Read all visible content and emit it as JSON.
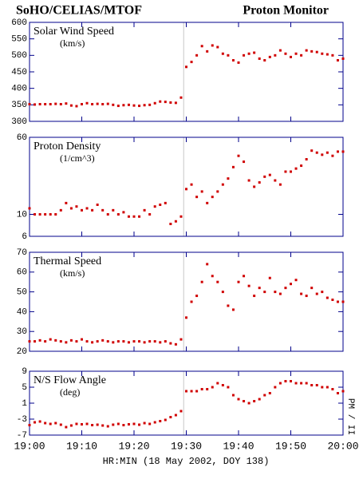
{
  "header": {
    "left": "SoHO/CELIAS/MTOF",
    "right": "Proton Monitor"
  },
  "xlabel": "HR:MIN (18 May 2002, DOY 138)",
  "side_label": "PM / II",
  "chart_data": [
    {
      "type": "scatter",
      "title": "Solar Wind Speed",
      "unit": "(km/s)",
      "color": "#d00000",
      "axis_color": "#00008b",
      "log_y": false,
      "xlim": [
        "19:00",
        "20:00"
      ],
      "xticks": [
        "19:00",
        "19:10",
        "19:20",
        "19:30",
        "19:40",
        "19:50",
        "20:00"
      ],
      "ylim": [
        300,
        600
      ],
      "yticks": [
        300,
        350,
        400,
        450,
        500,
        550,
        600
      ],
      "x": [
        "19:00",
        "19:01",
        "19:02",
        "19:03",
        "19:04",
        "19:05",
        "19:06",
        "19:07",
        "19:08",
        "19:09",
        "19:10",
        "19:11",
        "19:12",
        "19:13",
        "19:14",
        "19:15",
        "19:16",
        "19:17",
        "19:18",
        "19:19",
        "19:20",
        "19:21",
        "19:22",
        "19:23",
        "19:24",
        "19:25",
        "19:26",
        "19:27",
        "19:28",
        "19:29",
        "19:30",
        "19:31",
        "19:32",
        "19:33",
        "19:34",
        "19:35",
        "19:36",
        "19:37",
        "19:38",
        "19:39",
        "19:40",
        "19:41",
        "19:42",
        "19:43",
        "19:44",
        "19:45",
        "19:46",
        "19:47",
        "19:48",
        "19:49",
        "19:50",
        "19:51",
        "19:52",
        "19:53",
        "19:54",
        "19:55",
        "19:56",
        "19:57",
        "19:58",
        "19:59",
        "20:00"
      ],
      "values": [
        352,
        351,
        352,
        352,
        352,
        353,
        352,
        354,
        348,
        346,
        352,
        355,
        352,
        353,
        352,
        353,
        350,
        347,
        349,
        350,
        348,
        347,
        349,
        350,
        355,
        360,
        359,
        357,
        356,
        372,
        465,
        480,
        500,
        528,
        512,
        530,
        525,
        505,
        500,
        485,
        478,
        500,
        505,
        508,
        490,
        485,
        495,
        500,
        515,
        505,
        495,
        505,
        500,
        515,
        512,
        510,
        505,
        503,
        500,
        485,
        490
      ]
    },
    {
      "type": "scatter",
      "title": "Proton Density",
      "unit": "(1/cm^3)",
      "color": "#d00000",
      "axis_color": "#00008b",
      "log_y": true,
      "xlim": [
        "19:00",
        "20:00"
      ],
      "xticks": [
        "19:00",
        "19:10",
        "19:20",
        "19:30",
        "19:40",
        "19:50",
        "20:00"
      ],
      "ylim": [
        6,
        60
      ],
      "yticks": [
        6,
        10,
        60
      ],
      "x": [
        "19:00",
        "19:01",
        "19:02",
        "19:03",
        "19:04",
        "19:05",
        "19:06",
        "19:07",
        "19:08",
        "19:09",
        "19:10",
        "19:11",
        "19:12",
        "19:13",
        "19:14",
        "19:15",
        "19:16",
        "19:17",
        "19:18",
        "19:19",
        "19:20",
        "19:21",
        "19:22",
        "19:23",
        "19:24",
        "19:25",
        "19:26",
        "19:27",
        "19:28",
        "19:29",
        "19:30",
        "19:31",
        "19:32",
        "19:33",
        "19:34",
        "19:35",
        "19:36",
        "19:37",
        "19:38",
        "19:39",
        "19:40",
        "19:41",
        "19:42",
        "19:43",
        "19:44",
        "19:45",
        "19:46",
        "19:47",
        "19:48",
        "19:49",
        "19:50",
        "19:51",
        "19:52",
        "19:53",
        "19:54",
        "19:55",
        "19:56",
        "19:57",
        "19:58",
        "19:59",
        "20:00"
      ],
      "values": [
        11.5,
        10,
        10,
        10,
        10,
        10,
        11,
        13,
        11.5,
        12,
        11,
        11.5,
        11,
        12.5,
        11,
        10,
        11,
        10,
        10.5,
        9.5,
        9.5,
        9.5,
        11,
        10,
        12,
        12.5,
        13,
        8,
        8.5,
        9.5,
        18,
        20,
        15,
        17,
        13,
        15,
        17,
        20,
        23,
        30,
        39,
        34,
        22,
        19,
        21,
        24,
        25,
        22,
        20,
        27,
        27,
        29,
        31,
        36,
        44,
        42,
        40,
        42,
        39,
        43,
        43
      ]
    },
    {
      "type": "scatter",
      "title": "Thermal Speed",
      "unit": "(km/s)",
      "color": "#d00000",
      "axis_color": "#00008b",
      "log_y": false,
      "xlim": [
        "19:00",
        "20:00"
      ],
      "xticks": [
        "19:00",
        "19:10",
        "19:20",
        "19:30",
        "19:40",
        "19:50",
        "20:00"
      ],
      "ylim": [
        20,
        70
      ],
      "yticks": [
        20,
        30,
        40,
        50,
        60,
        70
      ],
      "x": [
        "19:00",
        "19:01",
        "19:02",
        "19:03",
        "19:04",
        "19:05",
        "19:06",
        "19:07",
        "19:08",
        "19:09",
        "19:10",
        "19:11",
        "19:12",
        "19:13",
        "19:14",
        "19:15",
        "19:16",
        "19:17",
        "19:18",
        "19:19",
        "19:20",
        "19:21",
        "19:22",
        "19:23",
        "19:24",
        "19:25",
        "19:26",
        "19:27",
        "19:28",
        "19:29",
        "19:30",
        "19:31",
        "19:32",
        "19:33",
        "19:34",
        "19:35",
        "19:36",
        "19:37",
        "19:38",
        "19:39",
        "19:40",
        "19:41",
        "19:42",
        "19:43",
        "19:44",
        "19:45",
        "19:46",
        "19:47",
        "19:48",
        "19:49",
        "19:50",
        "19:51",
        "19:52",
        "19:53",
        "19:54",
        "19:55",
        "19:56",
        "19:57",
        "19:58",
        "19:59",
        "20:00"
      ],
      "values": [
        25,
        25,
        25.5,
        25,
        26,
        25.5,
        25,
        24.5,
        25.5,
        25,
        26,
        25,
        24.5,
        25,
        25.5,
        25,
        24.5,
        25,
        25,
        24.5,
        25,
        25,
        24.5,
        25,
        25,
        24.5,
        25,
        24,
        23.5,
        26,
        37,
        45,
        48,
        55,
        64,
        58,
        55,
        50,
        43,
        41,
        55,
        58,
        53,
        48,
        52,
        50,
        57,
        50,
        49,
        52,
        54,
        56,
        49,
        48,
        52,
        49,
        50,
        47,
        46,
        45,
        45
      ]
    },
    {
      "type": "scatter",
      "title": "N/S Flow Angle",
      "unit": "(deg)",
      "color": "#d00000",
      "axis_color": "#00008b",
      "log_y": false,
      "xlim": [
        "19:00",
        "20:00"
      ],
      "xticks": [
        "19:00",
        "19:10",
        "19:20",
        "19:30",
        "19:40",
        "19:50",
        "20:00"
      ],
      "ylim": [
        -7,
        9
      ],
      "yticks": [
        -7,
        -3,
        1,
        5,
        9
      ],
      "x": [
        "19:00",
        "19:01",
        "19:02",
        "19:03",
        "19:04",
        "19:05",
        "19:06",
        "19:07",
        "19:08",
        "19:09",
        "19:10",
        "19:11",
        "19:12",
        "19:13",
        "19:14",
        "19:15",
        "19:16",
        "19:17",
        "19:18",
        "19:19",
        "19:20",
        "19:21",
        "19:22",
        "19:23",
        "19:24",
        "19:25",
        "19:26",
        "19:27",
        "19:28",
        "19:29",
        "19:30",
        "19:31",
        "19:32",
        "19:33",
        "19:34",
        "19:35",
        "19:36",
        "19:37",
        "19:38",
        "19:39",
        "19:40",
        "19:41",
        "19:42",
        "19:43",
        "19:44",
        "19:45",
        "19:46",
        "19:47",
        "19:48",
        "19:49",
        "19:50",
        "19:51",
        "19:52",
        "19:53",
        "19:54",
        "19:55",
        "19:56",
        "19:57",
        "19:58",
        "19:59",
        "20:00"
      ],
      "values": [
        -4.5,
        -3.8,
        -3.6,
        -4,
        -4.2,
        -4,
        -4.4,
        -5,
        -4.6,
        -4.2,
        -4.3,
        -4.2,
        -4.5,
        -4.4,
        -4.6,
        -4.8,
        -4.4,
        -4.2,
        -4.5,
        -4.3,
        -4.2,
        -4.4,
        -4,
        -4.2,
        -3.8,
        -3.5,
        -3.2,
        -2.5,
        -2,
        -1,
        4,
        4,
        4,
        4.5,
        4.5,
        5,
        6,
        5.5,
        5,
        3,
        2,
        1.5,
        1,
        1.5,
        2,
        3,
        3.5,
        5,
        6,
        6.5,
        6.5,
        6,
        6,
        6,
        5.5,
        5.5,
        5,
        5,
        4.5,
        3.5,
        4
      ]
    }
  ]
}
